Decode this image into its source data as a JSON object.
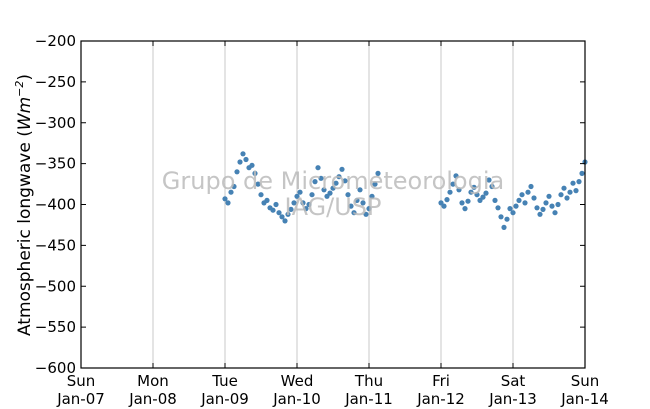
{
  "chart_data": {
    "type": "scatter",
    "ylabel_text": "Atmospheric longwave (",
    "ylabel_unit": "Wm",
    "ylabel_exp": "−2",
    "ylabel_close": ")",
    "ylim": [
      -600,
      -200
    ],
    "yticks": [
      -200,
      -250,
      -300,
      -350,
      -400,
      -450,
      -500,
      -550,
      -600
    ],
    "ytick_labels": [
      "−200",
      "−250",
      "−300",
      "−350",
      "−400",
      "−450",
      "−500",
      "−550",
      "−600"
    ],
    "xlim": [
      "2013-01-07",
      "2013-01-14"
    ],
    "xticks": [
      {
        "day": "Sun",
        "date": "Jan-07"
      },
      {
        "day": "Mon",
        "date": "Jan-08"
      },
      {
        "day": "Tue",
        "date": "Jan-09"
      },
      {
        "day": "Wed",
        "date": "Jan-10"
      },
      {
        "day": "Thu",
        "date": "Jan-11"
      },
      {
        "day": "Fri",
        "date": "Jan-12"
      },
      {
        "day": "Sat",
        "date": "Jan-13"
      },
      {
        "day": "Sun",
        "date": "Jan-14"
      }
    ],
    "grid": "vertical",
    "series": [
      {
        "color": "#4682b4",
        "points": [
          [
            "2013-01-09T00:00",
            -393
          ],
          [
            "2013-01-09T01:00",
            -398
          ],
          [
            "2013-01-09T02:00",
            -385
          ],
          [
            "2013-01-09T03:00",
            -378
          ],
          [
            "2013-01-09T04:00",
            -360
          ],
          [
            "2013-01-09T05:00",
            -348
          ],
          [
            "2013-01-09T06:00",
            -338
          ],
          [
            "2013-01-09T07:00",
            -345
          ],
          [
            "2013-01-09T08:00",
            -355
          ],
          [
            "2013-01-09T09:00",
            -352
          ],
          [
            "2013-01-09T10:00",
            -362
          ],
          [
            "2013-01-09T11:00",
            -375
          ],
          [
            "2013-01-09T12:00",
            -388
          ],
          [
            "2013-01-09T13:00",
            -398
          ],
          [
            "2013-01-09T14:00",
            -395
          ],
          [
            "2013-01-09T15:00",
            -404
          ],
          [
            "2013-01-09T16:00",
            -407
          ],
          [
            "2013-01-09T17:00",
            -400
          ],
          [
            "2013-01-09T18:00",
            -410
          ],
          [
            "2013-01-09T19:00",
            -415
          ],
          [
            "2013-01-09T20:00",
            -420
          ],
          [
            "2013-01-09T21:00",
            -412
          ],
          [
            "2013-01-09T22:00",
            -406
          ],
          [
            "2013-01-09T23:00",
            -398
          ],
          [
            "2013-01-10T00:00",
            -390
          ],
          [
            "2013-01-10T01:00",
            -385
          ],
          [
            "2013-01-10T02:00",
            -398
          ],
          [
            "2013-01-10T03:00",
            -405
          ],
          [
            "2013-01-10T04:00",
            -400
          ],
          [
            "2013-01-10T05:00",
            -388
          ],
          [
            "2013-01-10T06:00",
            -372
          ],
          [
            "2013-01-10T07:00",
            -355
          ],
          [
            "2013-01-10T08:00",
            -368
          ],
          [
            "2013-01-10T09:00",
            -382
          ],
          [
            "2013-01-10T10:00",
            -390
          ],
          [
            "2013-01-10T11:00",
            -386
          ],
          [
            "2013-01-10T12:00",
            -380
          ],
          [
            "2013-01-10T13:00",
            -374
          ],
          [
            "2013-01-10T14:00",
            -366
          ],
          [
            "2013-01-10T15:00",
            -357
          ],
          [
            "2013-01-10T16:00",
            -371
          ],
          [
            "2013-01-10T17:00",
            -388
          ],
          [
            "2013-01-10T18:00",
            -402
          ],
          [
            "2013-01-10T19:00",
            -410
          ],
          [
            "2013-01-10T20:00",
            -395
          ],
          [
            "2013-01-10T21:00",
            -382
          ],
          [
            "2013-01-10T22:00",
            -398
          ],
          [
            "2013-01-10T23:00",
            -412
          ],
          [
            "2013-01-11T00:00",
            -405
          ],
          [
            "2013-01-11T01:00",
            -390
          ],
          [
            "2013-01-11T02:00",
            -375
          ],
          [
            "2013-01-11T03:00",
            -362
          ],
          [
            "2013-01-12T00:00",
            -398
          ],
          [
            "2013-01-12T01:00",
            -402
          ],
          [
            "2013-01-12T02:00",
            -394
          ],
          [
            "2013-01-12T03:00",
            -385
          ],
          [
            "2013-01-12T04:00",
            -375
          ],
          [
            "2013-01-12T05:00",
            -365
          ],
          [
            "2013-01-12T06:00",
            -382
          ],
          [
            "2013-01-12T07:00",
            -398
          ],
          [
            "2013-01-12T08:00",
            -405
          ],
          [
            "2013-01-12T09:00",
            -396
          ],
          [
            "2013-01-12T10:00",
            -385
          ],
          [
            "2013-01-12T11:00",
            -379
          ],
          [
            "2013-01-12T12:00",
            -388
          ],
          [
            "2013-01-12T13:00",
            -395
          ],
          [
            "2013-01-12T14:00",
            -391
          ],
          [
            "2013-01-12T15:00",
            -386
          ],
          [
            "2013-01-12T16:00",
            -370
          ],
          [
            "2013-01-12T17:00",
            -378
          ],
          [
            "2013-01-12T18:00",
            -395
          ],
          [
            "2013-01-12T19:00",
            -404
          ],
          [
            "2013-01-12T20:00",
            -415
          ],
          [
            "2013-01-12T21:00",
            -428
          ],
          [
            "2013-01-12T22:00",
            -418
          ],
          [
            "2013-01-12T23:00",
            -405
          ],
          [
            "2013-01-13T00:00",
            -410
          ],
          [
            "2013-01-13T01:00",
            -402
          ],
          [
            "2013-01-13T02:00",
            -395
          ],
          [
            "2013-01-13T03:00",
            -388
          ],
          [
            "2013-01-13T04:00",
            -398
          ],
          [
            "2013-01-13T05:00",
            -385
          ],
          [
            "2013-01-13T06:00",
            -378
          ],
          [
            "2013-01-13T07:00",
            -392
          ],
          [
            "2013-01-13T08:00",
            -404
          ],
          [
            "2013-01-13T09:00",
            -412
          ],
          [
            "2013-01-13T10:00",
            -406
          ],
          [
            "2013-01-13T11:00",
            -398
          ],
          [
            "2013-01-13T12:00",
            -390
          ],
          [
            "2013-01-13T13:00",
            -402
          ],
          [
            "2013-01-13T14:00",
            -410
          ],
          [
            "2013-01-13T15:00",
            -400
          ],
          [
            "2013-01-13T16:00",
            -388
          ],
          [
            "2013-01-13T17:00",
            -380
          ],
          [
            "2013-01-13T18:00",
            -392
          ],
          [
            "2013-01-13T19:00",
            -385
          ],
          [
            "2013-01-13T20:00",
            -374
          ],
          [
            "2013-01-13T21:00",
            -383
          ],
          [
            "2013-01-13T22:00",
            -372
          ],
          [
            "2013-01-13T23:00",
            -362
          ],
          [
            "2013-01-14T00:00",
            -348
          ]
        ]
      }
    ],
    "watermark": [
      "Grupo de Micrometeorologia",
      "IAG/USP"
    ]
  }
}
